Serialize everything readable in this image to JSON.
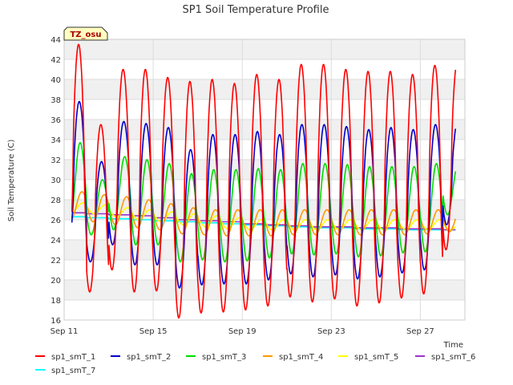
{
  "chart_data": {
    "type": "line",
    "title": "SP1 Soil Temperature Profile",
    "xlabel": "Time",
    "ylabel": "Soil Temperature (C)",
    "ylim": [
      16,
      44
    ],
    "xlim": [
      "2023-09-11",
      "2023-09-29"
    ],
    "yticks": [
      16,
      18,
      20,
      22,
      24,
      26,
      28,
      30,
      32,
      34,
      36,
      38,
      40,
      42,
      44
    ],
    "xticks": [
      "Sep 11",
      "Sep 15",
      "Sep 19",
      "Sep 23",
      "Sep 27"
    ],
    "grid": true,
    "legend_position": "bottom",
    "annotation": "TZ_osu",
    "series": [
      {
        "name": "sp1_smT_1",
        "color": "#ff0000",
        "daily_max": [
          43.5,
          35.5,
          41.0,
          41.0,
          40.2,
          39.8,
          40.0,
          39.6,
          40.5,
          40.0,
          41.5,
          41.5,
          41.0,
          40.8,
          40.8,
          40.5,
          41.4,
          41.6
        ],
        "daily_min": [
          20.3,
          18.8,
          21.0,
          18.8,
          18.9,
          16.2,
          16.7,
          16.8,
          17.0,
          17.4,
          18.3,
          17.8,
          18.1,
          17.4,
          17.7,
          18.2,
          18.6,
          23.0
        ]
      },
      {
        "name": "sp1_smT_2",
        "color": "#0000cc",
        "daily_max": [
          37.8,
          31.8,
          35.8,
          35.6,
          35.2,
          33.0,
          34.5,
          34.5,
          34.8,
          34.5,
          35.5,
          35.5,
          35.3,
          35.0,
          35.2,
          35.0,
          35.5,
          35.8
        ],
        "daily_min": [
          22.7,
          21.8,
          23.5,
          21.5,
          21.5,
          19.2,
          19.5,
          19.6,
          19.6,
          20.0,
          20.6,
          20.3,
          20.5,
          20.1,
          20.3,
          20.7,
          21.0,
          25.5
        ]
      },
      {
        "name": "sp1_smT_3",
        "color": "#00dd00",
        "daily_max": [
          33.7,
          30.0,
          32.3,
          32.0,
          31.6,
          30.6,
          31.0,
          31.0,
          31.1,
          31.0,
          31.6,
          31.6,
          31.5,
          31.3,
          31.3,
          31.3,
          31.6,
          31.8
        ],
        "daily_min": [
          24.7,
          24.5,
          25.0,
          23.5,
          23.5,
          21.8,
          22.0,
          21.8,
          21.9,
          22.2,
          22.6,
          22.5,
          22.6,
          22.3,
          22.4,
          22.7,
          22.8,
          26.5
        ]
      },
      {
        "name": "sp1_smT_4",
        "color": "#ff9900",
        "daily_max": [
          28.8,
          28.5,
          28.3,
          28.0,
          27.6,
          27.2,
          27.0,
          27.0,
          27.0,
          27.0,
          27.0,
          27.0,
          27.0,
          27.0,
          27.0,
          27.0,
          27.0,
          27.0
        ],
        "daily_min": [
          26.0,
          25.8,
          25.5,
          25.2,
          25.0,
          24.6,
          24.5,
          24.4,
          24.4,
          24.4,
          24.5,
          24.5,
          24.5,
          24.5,
          24.5,
          24.5,
          24.6,
          24.8
        ]
      },
      {
        "name": "sp1_smT_5",
        "color": "#ffff00",
        "daily_max": [
          27.7,
          27.5,
          27.2,
          27.0,
          26.8,
          26.6,
          26.4,
          26.2,
          26.0,
          26.0,
          26.0,
          26.0,
          26.0,
          26.0,
          26.0,
          26.0,
          26.0,
          25.8
        ],
        "daily_min": [
          26.8,
          26.6,
          26.3,
          26.0,
          25.8,
          25.5,
          25.3,
          25.1,
          25.0,
          25.0,
          25.0,
          25.0,
          25.0,
          25.0,
          25.0,
          25.0,
          25.0,
          25.0
        ]
      },
      {
        "name": "sp1_smT_6",
        "color": "#9933cc",
        "daily_max": [
          26.7,
          26.6,
          26.5,
          26.4,
          26.2,
          26.0,
          25.9,
          25.8,
          25.6,
          25.5,
          25.4,
          25.3,
          25.3,
          25.2,
          25.2,
          25.1,
          25.1,
          25.0
        ],
        "daily_min": [
          26.7,
          26.6,
          26.5,
          26.4,
          26.2,
          26.0,
          25.9,
          25.8,
          25.6,
          25.5,
          25.4,
          25.3,
          25.3,
          25.2,
          25.2,
          25.1,
          25.1,
          25.0
        ]
      },
      {
        "name": "sp1_smT_7",
        "color": "#00ffff",
        "daily_max": [
          26.3,
          26.2,
          26.1,
          26.0,
          25.9,
          25.8,
          25.7,
          25.6,
          25.5,
          25.4,
          25.3,
          25.2,
          25.2,
          25.1,
          25.1,
          25.0,
          25.0,
          25.0
        ],
        "daily_min": [
          26.3,
          26.2,
          26.1,
          26.0,
          25.9,
          25.8,
          25.7,
          25.6,
          25.5,
          25.4,
          25.3,
          25.2,
          25.2,
          25.1,
          25.1,
          25.0,
          25.0,
          25.0
        ]
      }
    ]
  }
}
